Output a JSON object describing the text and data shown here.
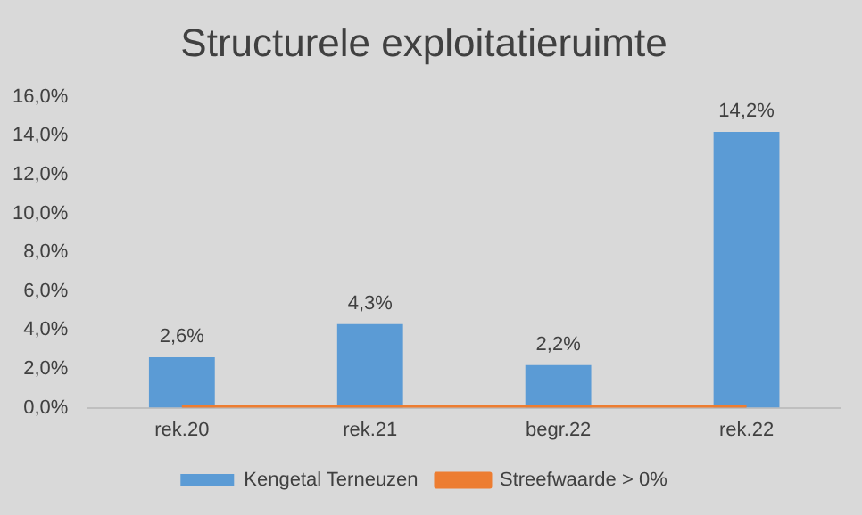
{
  "chart_data": {
    "type": "bar",
    "title": "Structurele exploitatieruimte",
    "categories": [
      "rek.20",
      "rek.21",
      "begr.22",
      "rek.22"
    ],
    "series": [
      {
        "name": "Kengetal Terneuzen",
        "color": "#5b9bd5",
        "values": [
          2.6,
          4.3,
          2.2,
          14.2
        ],
        "value_labels": [
          "2,6%",
          "4,3%",
          "2,2%",
          "14,2%"
        ]
      },
      {
        "name": "Streefwaarde > 0%",
        "type": "line",
        "color": "#ed7d31",
        "values": [
          0,
          0,
          0,
          0
        ]
      }
    ],
    "ylim": [
      0,
      16
    ],
    "yticks": [
      {
        "value": 0,
        "label": "0,0%"
      },
      {
        "value": 2,
        "label": "2,0%"
      },
      {
        "value": 4,
        "label": "4,0%"
      },
      {
        "value": 6,
        "label": "6,0%"
      },
      {
        "value": 8,
        "label": "8,0%"
      },
      {
        "value": 10,
        "label": "10,0%"
      },
      {
        "value": 12,
        "label": "12,0%"
      },
      {
        "value": 14,
        "label": "14,0%"
      },
      {
        "value": 16,
        "label": "16,0%"
      }
    ],
    "grid": false,
    "legend": "bottom",
    "marker": "none",
    "line_style": "solid"
  }
}
